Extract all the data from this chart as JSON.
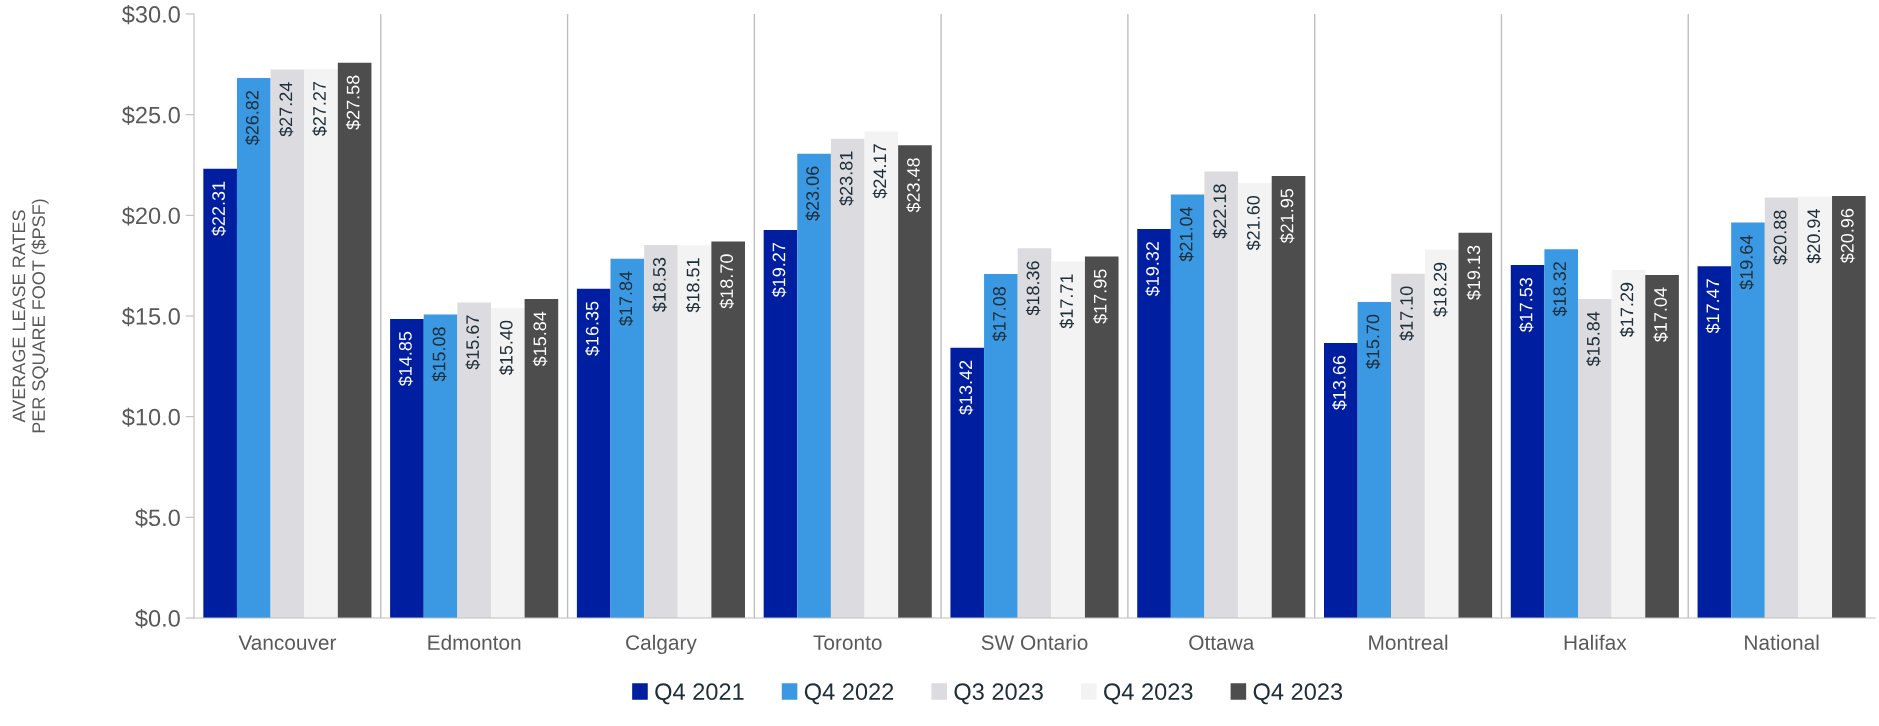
{
  "chart_data": {
    "type": "bar",
    "ylabel": "AVERAGE LEASE RATES\nPER SQUARE FOOT ($PSF)",
    "categories": [
      "Vancouver",
      "Edmonton",
      "Calgary",
      "Toronto",
      "SW Ontario",
      "Ottawa",
      "Montreal",
      "Halifax",
      "National"
    ],
    "series": [
      {
        "name": "Q4 2021",
        "color": "#001ea0",
        "values": [
          22.31,
          14.85,
          16.35,
          19.27,
          13.42,
          19.32,
          13.66,
          17.53,
          17.47
        ]
      },
      {
        "name": "Q4 2022",
        "color": "#3a99e2",
        "values": [
          26.82,
          15.08,
          17.84,
          23.06,
          17.08,
          21.04,
          15.7,
          18.32,
          19.64
        ]
      },
      {
        "name": "Q3 2023",
        "color": "#dcdbe0",
        "values": [
          27.24,
          15.67,
          18.53,
          23.81,
          18.36,
          22.18,
          17.1,
          15.84,
          20.88
        ]
      },
      {
        "name": "Q4 2023",
        "color": "#f3f3f3",
        "values": [
          27.27,
          15.4,
          18.51,
          24.17,
          17.71,
          21.6,
          18.29,
          17.29,
          20.94
        ]
      },
      {
        "name": "Q4 2023",
        "color": "#4d4d4d",
        "values": [
          27.58,
          15.84,
          18.7,
          23.48,
          17.95,
          21.95,
          19.13,
          17.04,
          20.96
        ]
      }
    ],
    "ylim": [
      0,
      30
    ],
    "yticks": [
      {
        "value": 0,
        "label": "$0.0"
      },
      {
        "value": 5,
        "label": "$5.0"
      },
      {
        "value": 10,
        "label": "$10.0"
      },
      {
        "value": 15,
        "label": "$15.0"
      },
      {
        "value": 20,
        "label": "$20.0"
      },
      {
        "value": 25,
        "label": "$25.0"
      },
      {
        "value": 30,
        "label": "$30.0"
      }
    ],
    "value_labels": [
      [
        "$22.31",
        "$14.85",
        "$16.35",
        "$19.27",
        "$13.42",
        "$19.32",
        "$13.66",
        "$17.53",
        "$17.47"
      ],
      [
        "$26.82",
        "$15.08",
        "$17.84",
        "$23.06",
        "$17.08",
        "$21.04",
        "$15.70",
        "$18.32",
        "$19.64"
      ],
      [
        "$27.24",
        "$15.67",
        "$18.53",
        "$23.81",
        "$18.36",
        "$22.18",
        "$17.10",
        "$15.84",
        "$20.88"
      ],
      [
        "$27.27",
        "$15.40",
        "$18.51",
        "$24.17",
        "$17.71",
        "$21.60",
        "$18.29",
        "$17.29",
        "$20.94"
      ],
      [
        "$27.58",
        "$15.84",
        "$18.70",
        "$23.48",
        "$17.95",
        "$21.95",
        "$19.13",
        "$17.04",
        "$20.96"
      ]
    ],
    "grid": "x",
    "legend": "bottom"
  }
}
